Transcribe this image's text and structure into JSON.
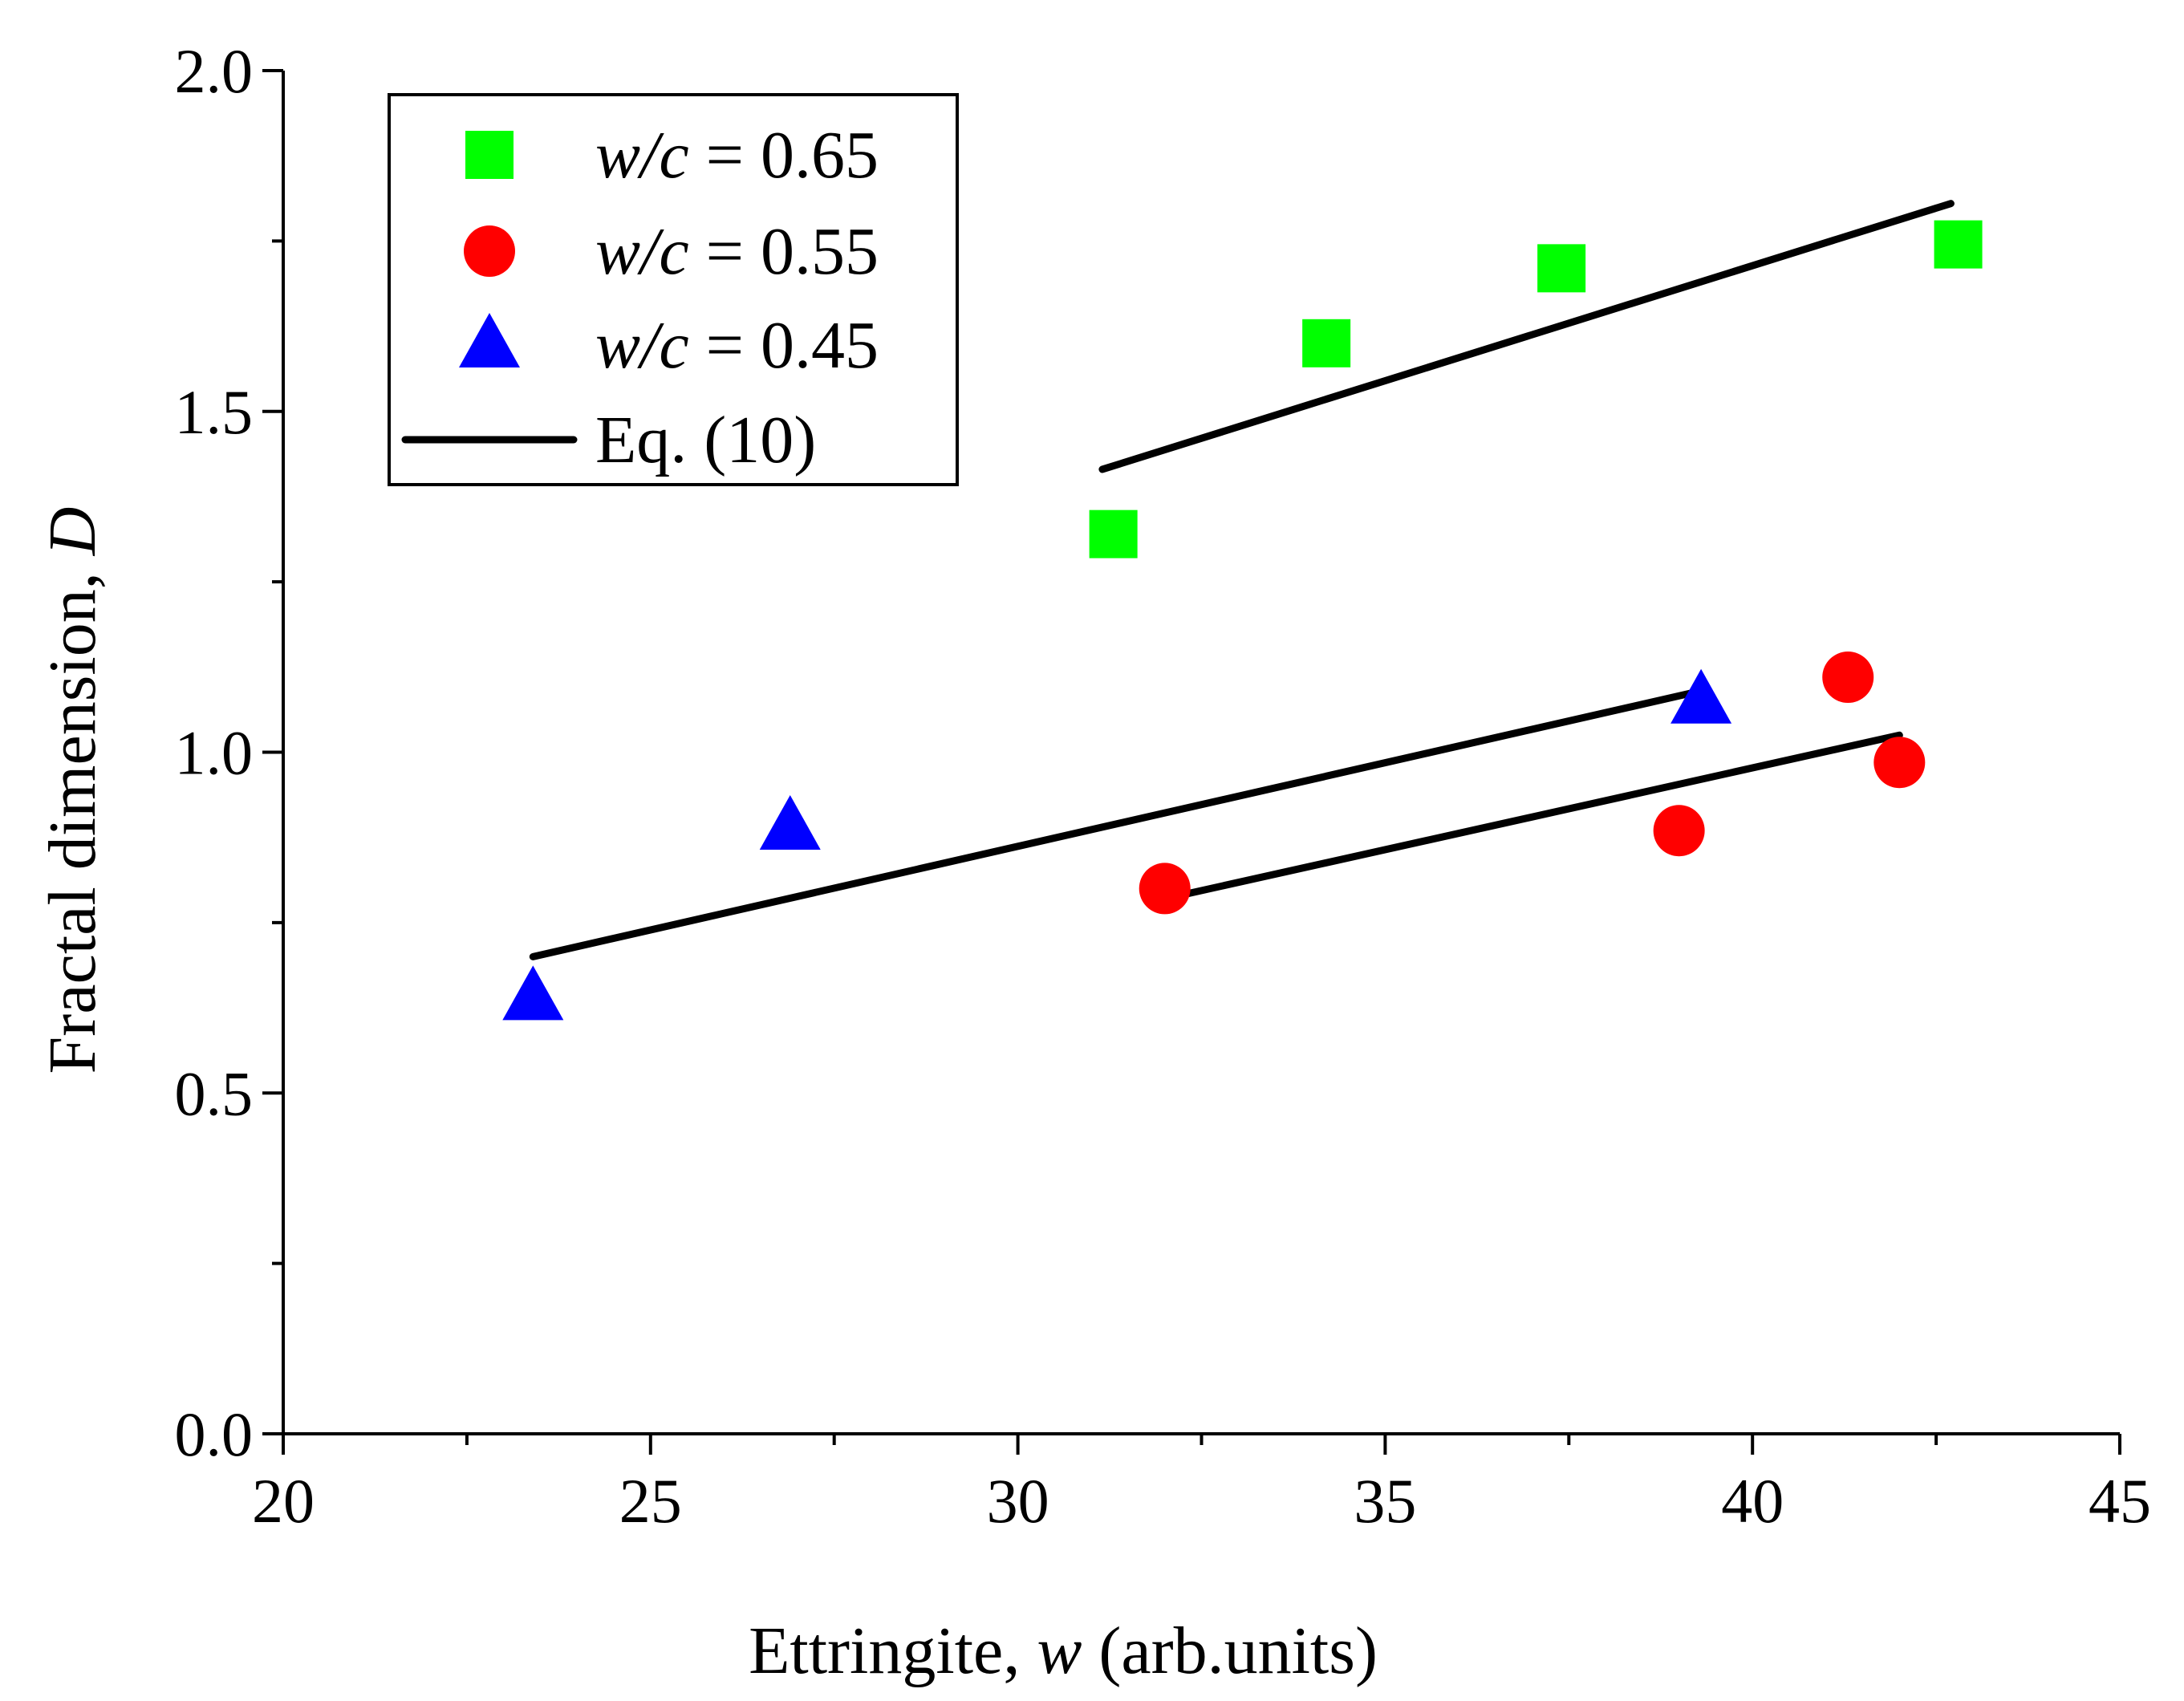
{
  "chart_data": {
    "type": "scatter",
    "title": "",
    "xlabel": {
      "prefix": "Ettringite, ",
      "var": "w",
      "suffix": " (arb.units)"
    },
    "ylabel": {
      "prefix": "Fractal dimension, ",
      "var": "D"
    },
    "xlim": [
      20,
      45
    ],
    "ylim": [
      0.0,
      2.0
    ],
    "x_ticks": [
      "20",
      "25",
      "30",
      "35",
      "40",
      "45"
    ],
    "y_ticks": [
      "0.0",
      "0.5",
      "1.0",
      "1.5",
      "2.0"
    ],
    "x_major_values": [
      20,
      25,
      30,
      35,
      40,
      45
    ],
    "x_minor_values": [
      22.5,
      27.5,
      32.5,
      37.5,
      42.5
    ],
    "y_major_values": [
      0.0,
      0.5,
      1.0,
      1.5,
      2.0
    ],
    "y_minor_values": [
      0.25,
      0.75,
      1.25,
      1.75
    ],
    "grid": false,
    "legend_position": "top-left",
    "series": [
      {
        "name": "w/c = 0.65",
        "label_var": "w/c",
        "label_value": " = 0.65",
        "marker": "square",
        "color": "#00ff00",
        "points": [
          [
            31.3,
            1.32
          ],
          [
            34.2,
            1.6
          ],
          [
            37.4,
            1.71
          ],
          [
            42.8,
            1.745
          ]
        ],
        "fit_line": [
          [
            31.15,
            1.415
          ],
          [
            42.7,
            1.805
          ]
        ]
      },
      {
        "name": "w/c = 0.55",
        "label_var": "w/c",
        "label_value": " = 0.55",
        "marker": "circle",
        "color": "#ff0000",
        "points": [
          [
            32.0,
            0.8
          ],
          [
            39.0,
            0.885
          ],
          [
            41.3,
            1.11
          ],
          [
            42.0,
            0.985
          ]
        ],
        "fit_line": [
          [
            32.0,
            0.785
          ],
          [
            42.0,
            1.025
          ]
        ]
      },
      {
        "name": "w/c = 0.45",
        "label_var": "w/c",
        "label_value": " = 0.45",
        "marker": "triangle",
        "color": "#0000ff",
        "points": [
          [
            23.4,
            0.64
          ],
          [
            26.9,
            0.89
          ],
          [
            39.3,
            1.075
          ]
        ],
        "fit_line": [
          [
            23.4,
            0.7
          ],
          [
            39.3,
            1.09
          ]
        ]
      }
    ],
    "fit_legend_label": "Eq. (10)",
    "fit_color": "#000000"
  }
}
